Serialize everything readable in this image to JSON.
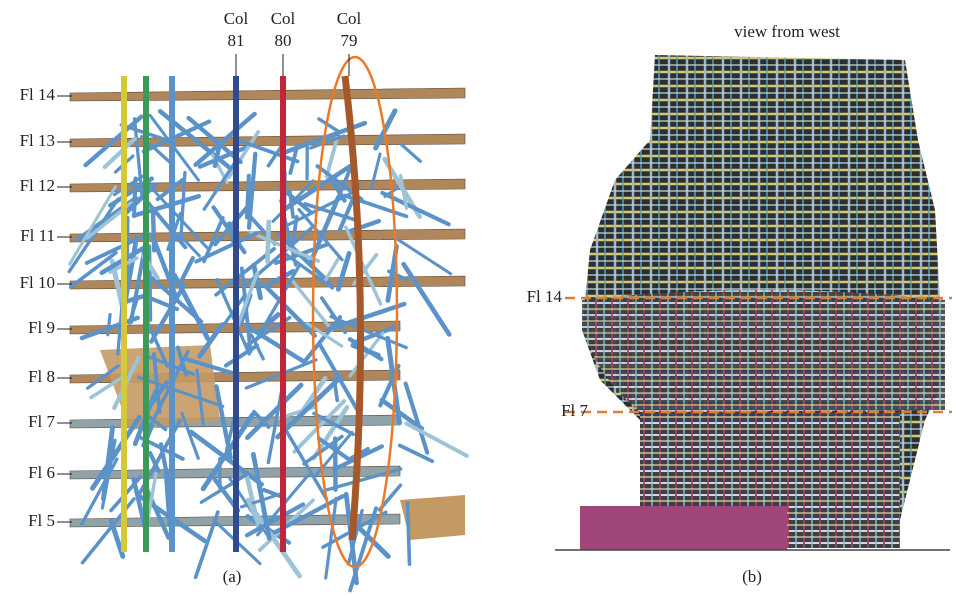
{
  "panel_a": {
    "column_labels": [
      [
        "Col",
        "81"
      ],
      [
        "Col",
        "80"
      ],
      [
        "Col",
        "79"
      ]
    ],
    "floor_labels": [
      "Fl 14",
      "Fl 13",
      "Fl 12",
      "Fl 11",
      "Fl 10",
      "Fl 9",
      "Fl 8",
      "Fl 7",
      "Fl 6",
      "Fl 5"
    ],
    "caption": "(a)"
  },
  "panel_b": {
    "title": "view from west",
    "floor_labels": [
      "Fl 14",
      "Fl 7"
    ],
    "caption": "(b)"
  }
}
